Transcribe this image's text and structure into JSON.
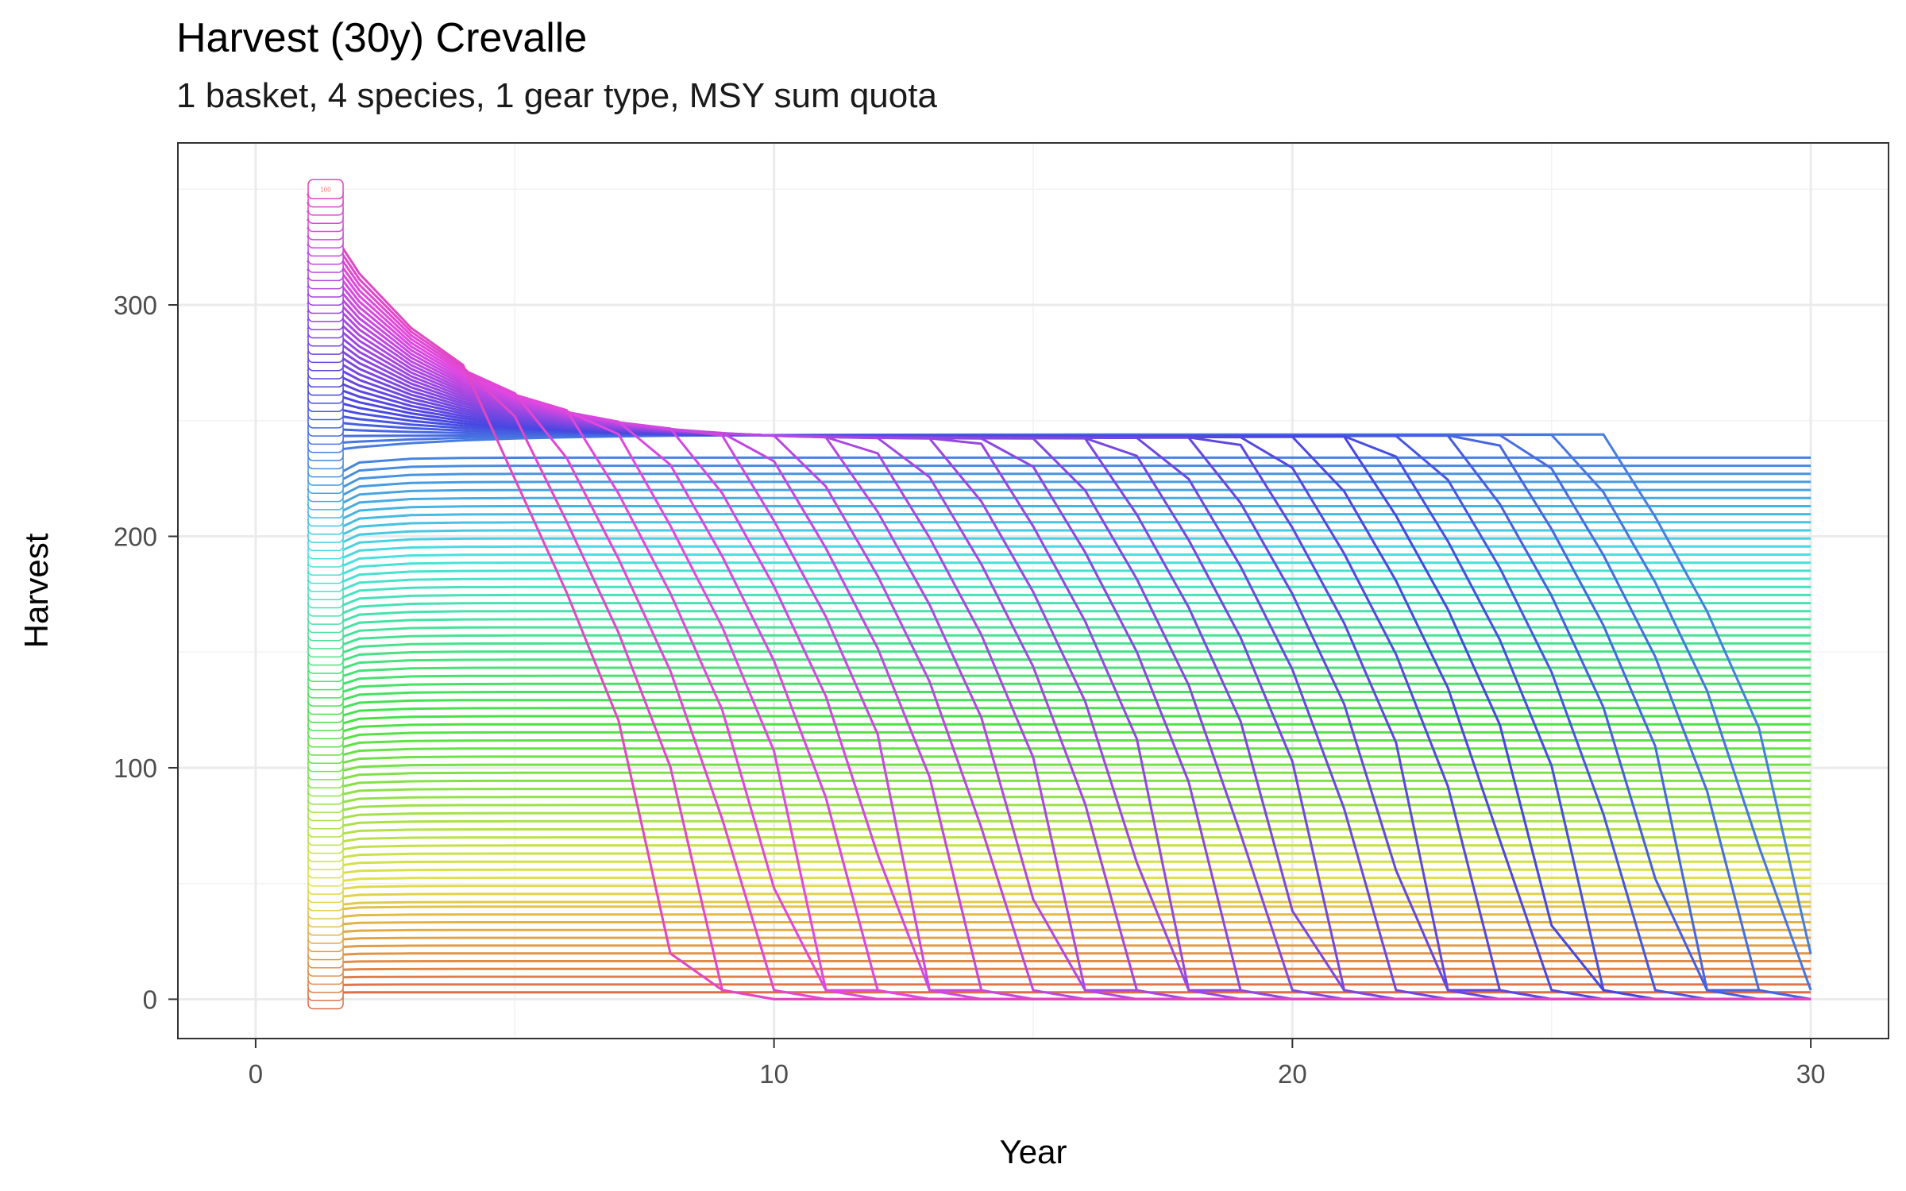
{
  "chart_data": {
    "type": "line",
    "title": "Harvest (30y) Crevalle",
    "subtitle": "1 basket, 4 species, 1 gear type, MSY sum quota",
    "xlabel": "Year",
    "ylabel": "Harvest",
    "xlim": [
      -1.5,
      31.5
    ],
    "ylim": [
      -17,
      370
    ],
    "x_ticks": [
      0,
      10,
      20,
      30
    ],
    "y_ticks": [
      0,
      100,
      200,
      300
    ],
    "grid": true,
    "legend": "none",
    "top_label_text": "100",
    "series_count": 100,
    "label_x": 1.35,
    "series_groups": [
      {
        "description": "constant low harvest lines",
        "count": 12,
        "x_start": 1,
        "x_end": 30,
        "y_from": 3,
        "y_to": 40
      },
      {
        "description": "near-constant mid harvest lines",
        "count": 56,
        "x_start": 1,
        "x_end": 30,
        "y_from": 42,
        "y_to": 234
      },
      {
        "description": "collapsing high-quota lines",
        "count": 32,
        "x_start": 1,
        "collapse_year_range": [
          8,
          30
        ],
        "peak_y": 348
      }
    ],
    "colors": [
      "#F8766D",
      "#C49A00",
      "#53B400",
      "#00C094",
      "#00B6EB",
      "#A58AFF",
      "#FB61D7"
    ]
  }
}
